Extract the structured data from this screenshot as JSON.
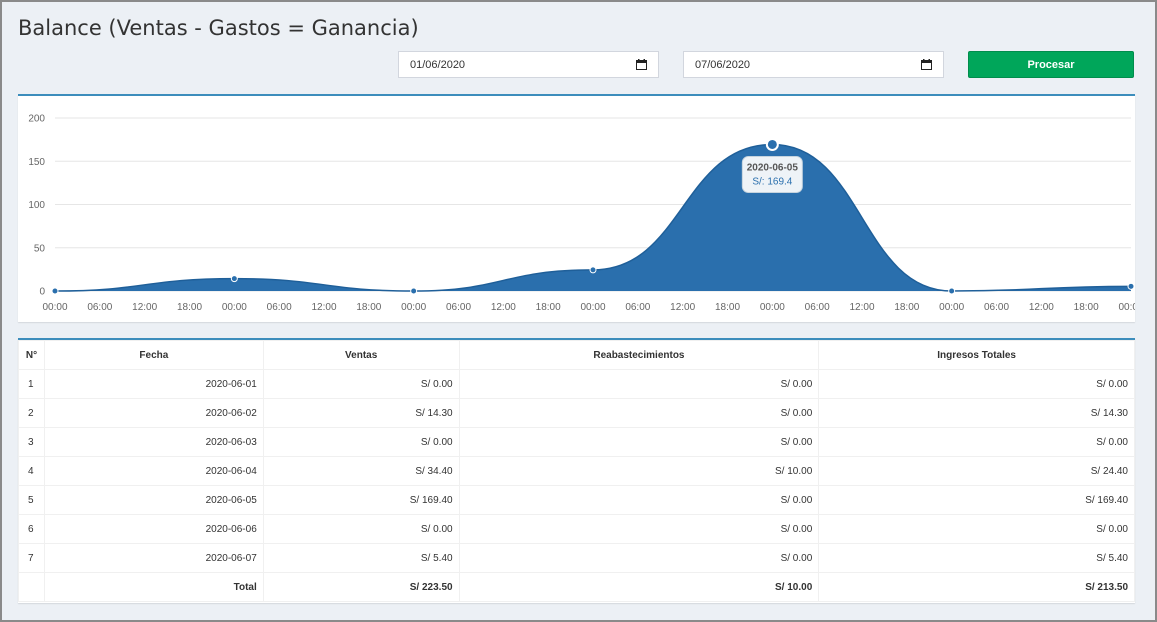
{
  "title": "Balance (Ventas - Gastos = Ganancia)",
  "filters": {
    "date_from": "01/06/2020",
    "date_to": "07/06/2020",
    "process_label": "Procesar"
  },
  "chart_data": {
    "type": "area",
    "x": [
      "2020-06-01",
      "2020-06-02",
      "2020-06-03",
      "2020-06-04",
      "2020-06-05",
      "2020-06-06",
      "2020-06-07"
    ],
    "values": [
      0,
      14.3,
      0,
      24.4,
      169.4,
      0,
      5.4
    ],
    "ylim": [
      0,
      200
    ],
    "y_ticks": [
      "0",
      "50",
      "100",
      "150",
      "200"
    ],
    "x_tick_labels": [
      "00:00",
      "06:00",
      "12:00",
      "18:00",
      "00:00",
      "06:00",
      "12:00",
      "18:00",
      "00:00",
      "06:00",
      "12:00",
      "18:00",
      "00:00",
      "06:00",
      "12:00",
      "18:00",
      "00:00",
      "06:00",
      "12:00",
      "18:00",
      "00:00",
      "06:00",
      "12:00",
      "18:00",
      "00:00"
    ],
    "grid": true,
    "color": "#2a6fad",
    "tooltip": {
      "date": "2020-06-05",
      "value": "S/: 169.4"
    }
  },
  "table": {
    "headers": [
      "N°",
      "Fecha",
      "Ventas",
      "Reabastecimientos",
      "Ingresos Totales"
    ],
    "rows": [
      {
        "n": "1",
        "fecha": "2020-06-01",
        "ventas": "S/ 0.00",
        "reab": "S/ 0.00",
        "ingresos": "S/ 0.00"
      },
      {
        "n": "2",
        "fecha": "2020-06-02",
        "ventas": "S/ 14.30",
        "reab": "S/ 0.00",
        "ingresos": "S/ 14.30"
      },
      {
        "n": "3",
        "fecha": "2020-06-03",
        "ventas": "S/ 0.00",
        "reab": "S/ 0.00",
        "ingresos": "S/ 0.00"
      },
      {
        "n": "4",
        "fecha": "2020-06-04",
        "ventas": "S/ 34.40",
        "reab": "S/ 10.00",
        "ingresos": "S/ 24.40"
      },
      {
        "n": "5",
        "fecha": "2020-06-05",
        "ventas": "S/ 169.40",
        "reab": "S/ 0.00",
        "ingresos": "S/ 169.40"
      },
      {
        "n": "6",
        "fecha": "2020-06-06",
        "ventas": "S/ 0.00",
        "reab": "S/ 0.00",
        "ingresos": "S/ 0.00"
      },
      {
        "n": "7",
        "fecha": "2020-06-07",
        "ventas": "S/ 5.40",
        "reab": "S/ 0.00",
        "ingresos": "S/ 5.40"
      }
    ],
    "total": {
      "label": "Total",
      "ventas": "S/ 223.50",
      "reab": "S/ 10.00",
      "ingresos": "S/ 213.50"
    }
  }
}
